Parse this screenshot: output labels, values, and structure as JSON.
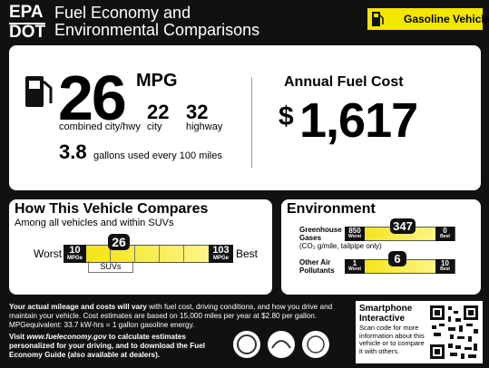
{
  "header": {
    "agency_1": "EPA",
    "agency_2": "DOT",
    "title_1": "Fuel Economy and",
    "title_2": "Environmental Comparisons",
    "vehicle_type": "Gasoline Vehicle"
  },
  "fuel_economy": {
    "mpg": "26",
    "mpg_unit": "MPG",
    "combined_label": "combined city/hwy",
    "city": "22",
    "city_label": "city",
    "highway": "32",
    "highway_label": "highway",
    "gallons": "3.8",
    "gallons_label": "gallons used every 100 miles"
  },
  "annual_cost": {
    "title": "Annual Fuel Cost",
    "currency": "$",
    "amount": "1,617"
  },
  "compare": {
    "title": "How This Vehicle Compares",
    "subtitle": "Among all vehicles and within SUVs",
    "worst_label": "Worst",
    "best_label": "Best",
    "min": "10",
    "min_unit": "MPGe",
    "value": "26",
    "max": "103",
    "max_unit": "MPGe",
    "class_label": "SUVs"
  },
  "environment": {
    "title": "Environment",
    "ghg_label": "Greenhouse Gases",
    "ghg_unit": "(CO₂ g/mile, tailpipe only)",
    "ghg_worst": "850",
    "ghg_worst_label": "Worst",
    "ghg_value": "347",
    "ghg_best": "0",
    "ghg_best_label": "Best",
    "air_label": "Other Air Pollutants",
    "air_worst": "1",
    "air_worst_label": "Worst",
    "air_value": "6",
    "air_best": "10",
    "air_best_label": "Best"
  },
  "footer": {
    "notice_bold": "Your actual mileage and costs will vary",
    "notice_rest": " with fuel cost, driving conditions, and how you drive and maintain your vehicle. Cost estimates are based on 15,000 miles per year at $2.80 per gallon. MPGequivalent: 33.7 kW-hrs = 1 gallon gasoline energy.",
    "visit_1": "Visit ",
    "visit_url": "www.fueleconomy.gov",
    "visit_2": " to calculate estimates personalized for your driving, and to download the Fuel Economy Guide (also available at dealers)."
  },
  "smartphone": {
    "title": "Smartphone Interactive",
    "text": "Scan code for more information about this vehicle or to compare it with others."
  }
}
